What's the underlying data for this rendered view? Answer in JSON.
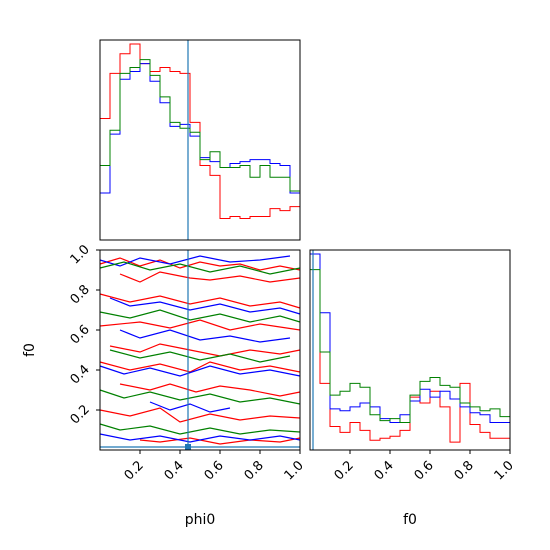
{
  "chart_data": [
    {
      "type": "step-histogram",
      "panel": "phi0-marginal",
      "xlim": [
        0,
        1
      ],
      "truth": 0.44,
      "truth_color": "#1f77b4",
      "series": [
        {
          "color": "#ff0000",
          "values": [
            0.62,
            0.85,
            0.95,
            1.0,
            0.9,
            0.86,
            0.88,
            0.86,
            0.85,
            0.6,
            0.38,
            0.33,
            0.11,
            0.12,
            0.11,
            0.12,
            0.12,
            0.16,
            0.15,
            0.17
          ]
        },
        {
          "color": "#0000ff",
          "values": [
            0.24,
            0.54,
            0.82,
            0.86,
            0.9,
            0.81,
            0.7,
            0.58,
            0.59,
            0.53,
            0.42,
            0.4,
            0.37,
            0.39,
            0.4,
            0.41,
            0.41,
            0.39,
            0.38,
            0.24
          ]
        },
        {
          "color": "#008000",
          "values": [
            0.38,
            0.56,
            0.85,
            0.88,
            0.92,
            0.84,
            0.73,
            0.6,
            0.57,
            0.55,
            0.41,
            0.45,
            0.37,
            0.37,
            0.38,
            0.32,
            0.38,
            0.32,
            0.32,
            0.25
          ]
        }
      ]
    },
    {
      "type": "contour",
      "panel": "phi0-f0-joint",
      "xlim": [
        0,
        1
      ],
      "ylim": [
        0,
        1
      ],
      "truth_x": 0.44,
      "truth_y": 0.015,
      "truth_color": "#1f77b4",
      "yticks": [
        "0.2",
        "0.4",
        "0.6",
        "0.8",
        "1.0"
      ],
      "xticks": [
        "0.2",
        "0.4",
        "0.6",
        "0.8",
        "1.0"
      ],
      "series": [
        {
          "color": "#ff0000",
          "paths": [
            [
              [
                0.0,
                0.93
              ],
              [
                0.1,
                0.96
              ],
              [
                0.2,
                0.92
              ],
              [
                0.3,
                0.95
              ],
              [
                0.4,
                0.91
              ],
              [
                0.5,
                0.94
              ],
              [
                0.6,
                0.92
              ],
              [
                0.7,
                0.93
              ],
              [
                0.8,
                0.9
              ],
              [
                0.9,
                0.92
              ],
              [
                1.0,
                0.9
              ]
            ],
            [
              [
                0.1,
                0.88
              ],
              [
                0.2,
                0.84
              ],
              [
                0.3,
                0.89
              ],
              [
                0.45,
                0.86
              ],
              [
                0.55,
                0.85
              ],
              [
                0.7,
                0.87
              ],
              [
                0.85,
                0.84
              ],
              [
                1.0,
                0.86
              ]
            ],
            [
              [
                0.0,
                0.78
              ],
              [
                0.15,
                0.74
              ],
              [
                0.3,
                0.77
              ],
              [
                0.45,
                0.73
              ],
              [
                0.6,
                0.76
              ],
              [
                0.75,
                0.72
              ],
              [
                0.9,
                0.74
              ],
              [
                1.0,
                0.71
              ]
            ],
            [
              [
                0.0,
                0.62
              ],
              [
                0.2,
                0.64
              ],
              [
                0.35,
                0.61
              ],
              [
                0.5,
                0.65
              ],
              [
                0.65,
                0.6
              ],
              [
                0.8,
                0.63
              ],
              [
                1.0,
                0.6
              ]
            ],
            [
              [
                0.05,
                0.52
              ],
              [
                0.2,
                0.49
              ],
              [
                0.3,
                0.53
              ],
              [
                0.45,
                0.5
              ],
              [
                0.6,
                0.47
              ],
              [
                0.75,
                0.5
              ],
              [
                0.9,
                0.48
              ],
              [
                1.0,
                0.5
              ]
            ],
            [
              [
                0.0,
                0.44
              ],
              [
                0.15,
                0.4
              ],
              [
                0.3,
                0.43
              ],
              [
                0.45,
                0.39
              ],
              [
                0.55,
                0.44
              ],
              [
                0.7,
                0.4
              ],
              [
                0.85,
                0.42
              ],
              [
                1.0,
                0.39
              ]
            ],
            [
              [
                0.1,
                0.33
              ],
              [
                0.25,
                0.3
              ],
              [
                0.35,
                0.33
              ],
              [
                0.48,
                0.29
              ],
              [
                0.6,
                0.32
              ],
              [
                0.75,
                0.3
              ],
              [
                0.9,
                0.27
              ],
              [
                1.0,
                0.29
              ]
            ],
            [
              [
                0.0,
                0.2
              ],
              [
                0.15,
                0.17
              ],
              [
                0.3,
                0.21
              ],
              [
                0.4,
                0.14
              ],
              [
                0.55,
                0.18
              ],
              [
                0.7,
                0.15
              ],
              [
                0.85,
                0.17
              ],
              [
                1.0,
                0.16
              ]
            ],
            [
              [
                0.2,
                0.05
              ],
              [
                0.3,
                0.04
              ],
              [
                0.45,
                0.06
              ],
              [
                0.6,
                0.03
              ],
              [
                0.75,
                0.05
              ],
              [
                0.9,
                0.04
              ],
              [
                1.0,
                0.06
              ]
            ]
          ]
        },
        {
          "color": "#0000ff",
          "paths": [
            [
              [
                0.0,
                0.95
              ],
              [
                0.1,
                0.92
              ],
              [
                0.2,
                0.96
              ],
              [
                0.35,
                0.93
              ],
              [
                0.5,
                0.97
              ],
              [
                0.65,
                0.94
              ],
              [
                0.8,
                0.95
              ],
              [
                0.95,
                0.97
              ]
            ],
            [
              [
                0.05,
                0.76
              ],
              [
                0.15,
                0.72
              ],
              [
                0.3,
                0.74
              ],
              [
                0.45,
                0.7
              ],
              [
                0.6,
                0.73
              ],
              [
                0.75,
                0.69
              ],
              [
                0.9,
                0.71
              ],
              [
                1.0,
                0.68
              ]
            ],
            [
              [
                0.1,
                0.6
              ],
              [
                0.2,
                0.56
              ],
              [
                0.35,
                0.6
              ],
              [
                0.5,
                0.55
              ],
              [
                0.65,
                0.57
              ],
              [
                0.8,
                0.54
              ],
              [
                0.95,
                0.56
              ]
            ],
            [
              [
                0.0,
                0.42
              ],
              [
                0.12,
                0.38
              ],
              [
                0.25,
                0.41
              ],
              [
                0.4,
                0.37
              ],
              [
                0.55,
                0.42
              ],
              [
                0.7,
                0.38
              ],
              [
                0.85,
                0.4
              ],
              [
                1.0,
                0.37
              ]
            ],
            [
              [
                0.25,
                0.24
              ],
              [
                0.35,
                0.2
              ],
              [
                0.45,
                0.23
              ],
              [
                0.55,
                0.19
              ],
              [
                0.65,
                0.21
              ]
            ],
            [
              [
                0.0,
                0.08
              ],
              [
                0.15,
                0.05
              ],
              [
                0.3,
                0.07
              ],
              [
                0.45,
                0.04
              ],
              [
                0.6,
                0.07
              ],
              [
                0.75,
                0.05
              ],
              [
                0.9,
                0.07
              ],
              [
                1.0,
                0.05
              ]
            ]
          ]
        },
        {
          "color": "#008000",
          "paths": [
            [
              [
                0.0,
                0.91
              ],
              [
                0.12,
                0.94
              ],
              [
                0.25,
                0.9
              ],
              [
                0.4,
                0.93
              ],
              [
                0.55,
                0.89
              ],
              [
                0.7,
                0.92
              ],
              [
                0.85,
                0.88
              ],
              [
                1.0,
                0.91
              ]
            ],
            [
              [
                0.0,
                0.69
              ],
              [
                0.15,
                0.66
              ],
              [
                0.3,
                0.7
              ],
              [
                0.45,
                0.65
              ],
              [
                0.6,
                0.68
              ],
              [
                0.75,
                0.64
              ],
              [
                0.9,
                0.67
              ],
              [
                1.0,
                0.64
              ]
            ],
            [
              [
                0.05,
                0.5
              ],
              [
                0.2,
                0.46
              ],
              [
                0.35,
                0.49
              ],
              [
                0.5,
                0.45
              ],
              [
                0.65,
                0.48
              ],
              [
                0.8,
                0.44
              ],
              [
                0.95,
                0.47
              ]
            ],
            [
              [
                0.0,
                0.3
              ],
              [
                0.12,
                0.26
              ],
              [
                0.25,
                0.29
              ],
              [
                0.4,
                0.25
              ],
              [
                0.55,
                0.28
              ],
              [
                0.7,
                0.24
              ],
              [
                0.85,
                0.26
              ],
              [
                1.0,
                0.23
              ]
            ],
            [
              [
                0.0,
                0.13
              ],
              [
                0.1,
                0.1
              ],
              [
                0.25,
                0.12
              ],
              [
                0.4,
                0.08
              ],
              [
                0.55,
                0.11
              ],
              [
                0.7,
                0.08
              ],
              [
                0.85,
                0.1
              ],
              [
                1.0,
                0.09
              ]
            ]
          ]
        }
      ]
    },
    {
      "type": "step-histogram",
      "panel": "f0-marginal",
      "xlim": [
        0,
        1
      ],
      "truth": 0.015,
      "truth_color": "#1f77b4",
      "xticks": [
        "0.2",
        "0.4",
        "0.6",
        "0.8",
        "1.0"
      ],
      "series": [
        {
          "color": "#ff0000",
          "values": [
            1.0,
            0.34,
            0.12,
            0.09,
            0.14,
            0.1,
            0.05,
            0.06,
            0.07,
            0.1,
            0.27,
            0.24,
            0.3,
            0.22,
            0.04,
            0.34,
            0.13,
            0.09,
            0.06,
            0.06
          ]
        },
        {
          "color": "#0000ff",
          "values": [
            1.0,
            0.7,
            0.21,
            0.2,
            0.22,
            0.24,
            0.22,
            0.16,
            0.14,
            0.18,
            0.25,
            0.31,
            0.27,
            0.3,
            0.26,
            0.22,
            0.19,
            0.18,
            0.14,
            0.14
          ]
        },
        {
          "color": "#008000",
          "values": [
            0.92,
            0.5,
            0.28,
            0.3,
            0.34,
            0.32,
            0.18,
            0.15,
            0.16,
            0.14,
            0.28,
            0.35,
            0.37,
            0.33,
            0.32,
            0.24,
            0.22,
            0.2,
            0.21,
            0.17
          ]
        }
      ]
    }
  ],
  "axes": {
    "xlabel_left": "phi0",
    "xlabel_right": "f0",
    "ylabel": "f0"
  }
}
